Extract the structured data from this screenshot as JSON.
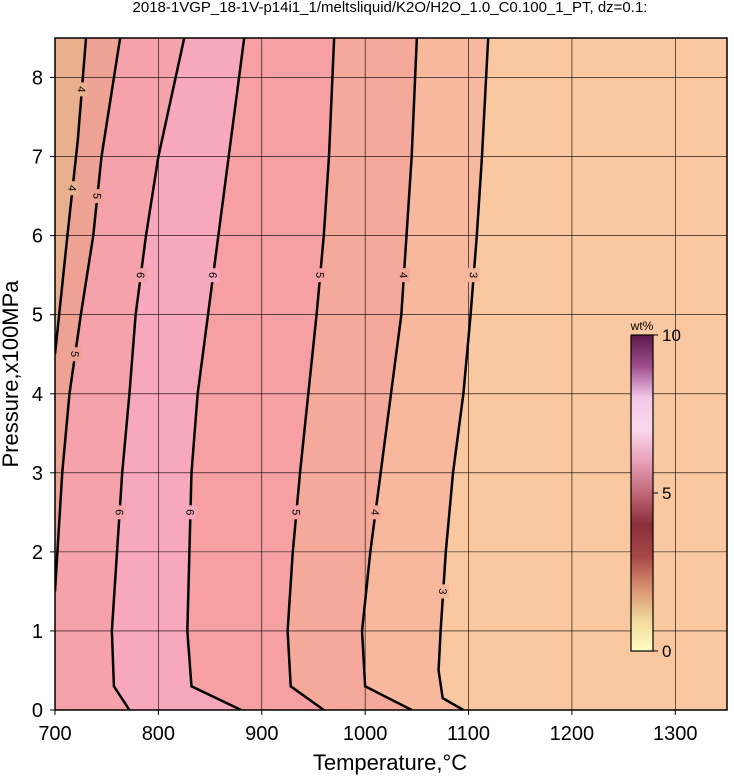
{
  "chart_data": {
    "type": "contour",
    "title": "2018-1VGP_18-1V-p14i1_1/meltsliquid/K2O/H2O_1.0_C0.100_1_PT, dz=0.1:",
    "x_label": "Temperature,°C",
    "y_label": "Pressure,x100MPa",
    "xlim": [
      700,
      1350
    ],
    "ylim": [
      0,
      8.5
    ],
    "xticks": [
      700,
      800,
      900,
      1000,
      1100,
      1200,
      1300
    ],
    "yticks": [
      0,
      1,
      2,
      3,
      4,
      5,
      6,
      7,
      8
    ],
    "grid": true,
    "background": "#fac8a0",
    "contours": [
      {
        "level": 3,
        "fill": "#f7b89e",
        "x": [
          1095,
          1075,
          1071,
          1073,
          1078,
          1085,
          1095,
          1102,
          1108,
          1113,
          1119
        ],
        "y": [
          0,
          0.15,
          0.5,
          1,
          2,
          3,
          4,
          5,
          6,
          7,
          8.5
        ]
      },
      {
        "level": 4,
        "fill": "#f5a99a",
        "x": [
          1045,
          1000,
          997,
          1005,
          1015,
          1025,
          1035,
          1040,
          1045,
          1050
        ],
        "y": [
          0,
          0.3,
          1,
          2,
          3,
          4,
          5,
          6,
          7,
          8.5
        ]
      },
      {
        "level": 5,
        "fill": "#f6a0a4",
        "x": [
          960,
          928,
          925,
          930,
          937,
          945,
          953,
          960,
          965,
          970
        ],
        "y": [
          0,
          0.3,
          1,
          2,
          3,
          4,
          5,
          6,
          7,
          8.5
        ]
      },
      {
        "level": 6,
        "fill": "#f8a8bc",
        "x": [
          880,
          832,
          828,
          830,
          832,
          838,
          848,
          858,
          868,
          883
        ],
        "y": [
          0,
          0.3,
          1,
          2,
          3,
          4,
          5,
          6,
          7,
          8.5
        ]
      },
      {
        "level": 6,
        "fill": "#f5a2aa",
        "x": [
          772,
          757,
          755,
          760,
          765,
          772,
          778,
          788,
          800,
          825
        ],
        "y": [
          0,
          0.3,
          1,
          2,
          3,
          4,
          5,
          6,
          7,
          8.5
        ]
      },
      {
        "level": 5,
        "fill": "#eea293",
        "x": [
          700,
          707,
          714,
          725,
          737,
          745,
          763
        ],
        "y": [
          1.5,
          3,
          4,
          5,
          6,
          7,
          8.5
        ]
      },
      {
        "level": 4,
        "fill": "#e8b08c",
        "x": [
          700,
          712,
          722,
          730
        ],
        "y": [
          4.5,
          6,
          7.2,
          8.5
        ]
      }
    ],
    "colorbar": {
      "label": "wt%",
      "lim": [
        0,
        10
      ],
      "ticks": [
        0,
        5,
        10
      ],
      "colors": [
        "#ffffc4",
        "#f0d89a",
        "#d89070",
        "#a84848",
        "#8a2e3a",
        "#c06878",
        "#e8a0b8",
        "#fad8ec",
        "#f4c8e8",
        "#a05090",
        "#5a1848"
      ]
    }
  }
}
